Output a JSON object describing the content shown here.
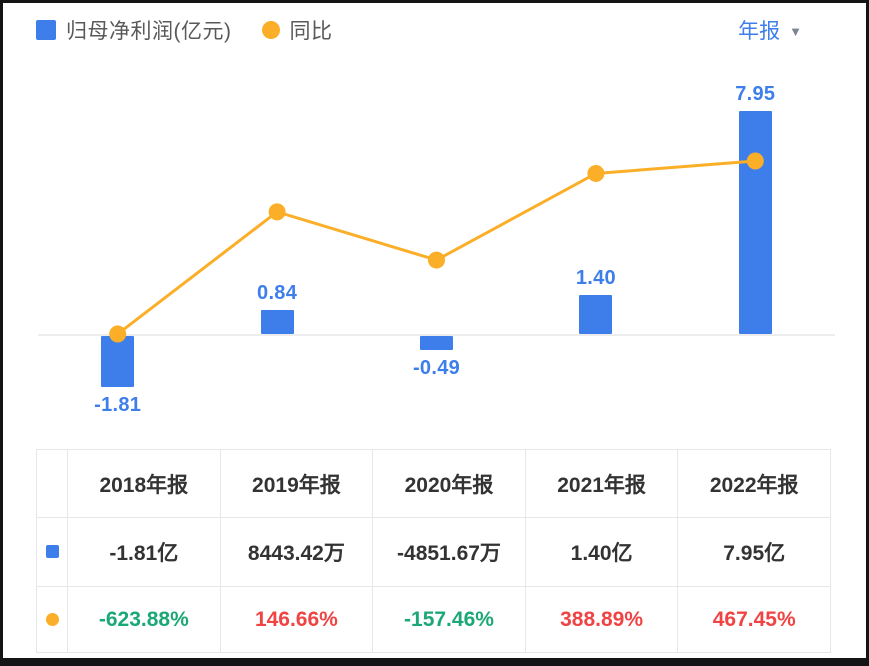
{
  "legend": {
    "profit_label": "归母净利润(亿元)",
    "yoy_label": "同比"
  },
  "period_selector": {
    "label": "年报"
  },
  "colors": {
    "bar_blue": "#3d7eea",
    "line_orange": "#fbae27",
    "down_green": "#1ca776",
    "up_red": "#f04444"
  },
  "chart_data": {
    "type": "bar",
    "categories": [
      "2018年报",
      "2019年报",
      "2020年报",
      "2021年报",
      "2022年报"
    ],
    "series": [
      {
        "name": "归母净利润(亿元)",
        "type": "bar",
        "unit": "亿元",
        "values": [
          -1.81,
          0.84,
          -0.49,
          1.4,
          7.95
        ],
        "labels": [
          "-1.81",
          "0.84",
          "-0.49",
          "1.40",
          "7.95"
        ]
      },
      {
        "name": "同比",
        "type": "line",
        "unit": "%",
        "values": [
          -623.88,
          146.66,
          -157.46,
          388.89,
          467.45
        ]
      }
    ],
    "title": "",
    "xlabel": "",
    "ylabel": "",
    "legend_position": "top-left",
    "grid": false
  },
  "table": {
    "headers": [
      "2018年报",
      "2019年报",
      "2020年报",
      "2021年报",
      "2022年报"
    ],
    "profit_row": {
      "icon": "blue-square",
      "values": [
        "-1.81亿",
        "8443.42万",
        "-4851.67万",
        "1.40亿",
        "7.95亿"
      ]
    },
    "yoy_row": {
      "icon": "orange-dot",
      "values": [
        "-623.88%",
        "146.66%",
        "-157.46%",
        "388.89%",
        "467.45%"
      ]
    }
  }
}
